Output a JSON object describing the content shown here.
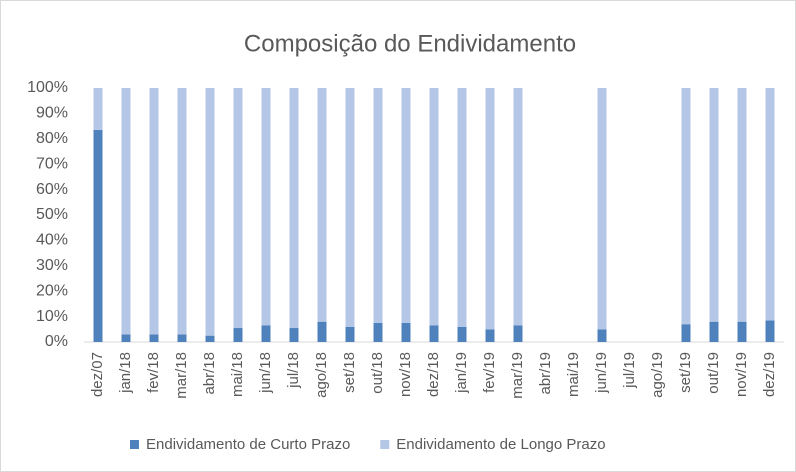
{
  "chart_data": {
    "type": "stacked_bar_100",
    "title": "Composição do Endividamento",
    "categories": [
      "dez/07",
      "jan/18",
      "fev/18",
      "mar/18",
      "abr/18",
      "mai/18",
      "jun/18",
      "jul/18",
      "ago/18",
      "set/18",
      "out/18",
      "nov/18",
      "dez/18",
      "jan/19",
      "fev/19",
      "mar/19",
      "abr/19",
      "mai/19",
      "jun/19",
      "jul/19",
      "ago/19",
      "set/19",
      "out/19",
      "nov/19",
      "dez/19"
    ],
    "series": [
      {
        "name": "Endividamento de Curto Prazo",
        "color": "#4f81bd",
        "values": [
          83.5,
          3,
          3,
          3,
          2.5,
          5.5,
          6.5,
          5.5,
          8,
          6,
          7.5,
          7.5,
          6.5,
          6,
          5,
          6.5,
          null,
          null,
          5,
          null,
          null,
          7,
          8,
          8,
          8.5
        ]
      },
      {
        "name": "Endividamento de Longo Prazo",
        "color": "#b4c7e7",
        "values": [
          16.5,
          97,
          97,
          97,
          97.5,
          94.5,
          93.5,
          94.5,
          92,
          94,
          92.5,
          92.5,
          93.5,
          94,
          95,
          93.5,
          null,
          null,
          95,
          null,
          null,
          93,
          92,
          92,
          91.5
        ]
      }
    ],
    "ylim": [
      0,
      100
    ],
    "yticks": [
      {
        "value": 0,
        "label": "0%"
      },
      {
        "value": 10,
        "label": "10%"
      },
      {
        "value": 20,
        "label": "20%"
      },
      {
        "value": 30,
        "label": "30%"
      },
      {
        "value": 40,
        "label": "40%"
      },
      {
        "value": 50,
        "label": "50%"
      },
      {
        "value": 60,
        "label": "60%"
      },
      {
        "value": 70,
        "label": "70%"
      },
      {
        "value": 80,
        "label": "80%"
      },
      {
        "value": 90,
        "label": "90%"
      },
      {
        "value": 100,
        "label": "100%"
      }
    ],
    "legend": "bottom"
  }
}
